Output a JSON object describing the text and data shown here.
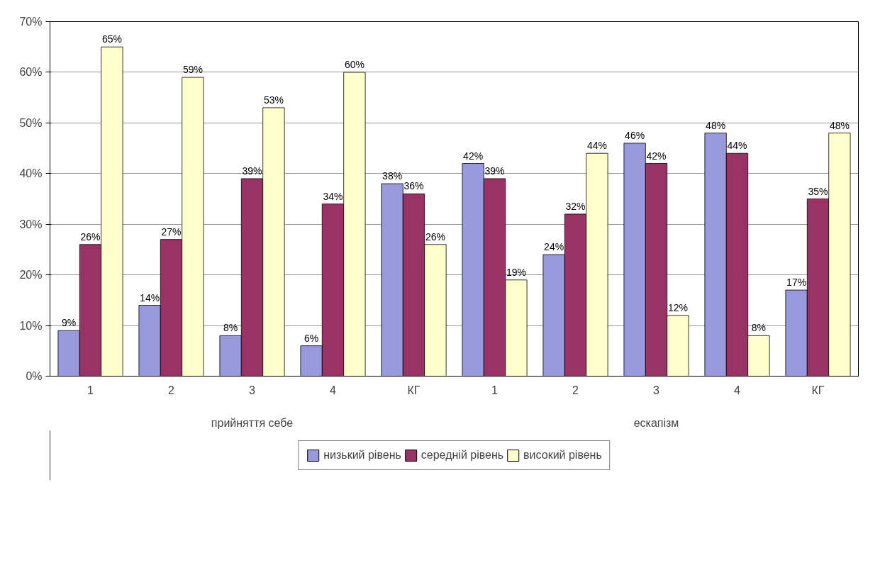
{
  "chart_data": {
    "type": "bar",
    "categories": [
      "1",
      "2",
      "3",
      "4",
      "КГ",
      "1",
      "2",
      "3",
      "4",
      "КГ"
    ],
    "annotations": [
      "прийняття себе",
      "ескапізм"
    ],
    "series": [
      {
        "name": "низький рівень",
        "color": "#9999dd",
        "values": [
          9,
          14,
          8,
          6,
          38,
          42,
          24,
          46,
          48,
          17
        ],
        "value_labels": [
          "9%",
          "14%",
          "8%",
          "6%",
          "38%",
          "42%",
          "24%",
          "46%",
          "48%",
          "17%"
        ]
      },
      {
        "name": "середній рівень",
        "color": "#993366",
        "values": [
          26,
          27,
          39,
          34,
          36,
          39,
          32,
          42,
          44,
          35
        ],
        "value_labels": [
          "26%",
          "27%",
          "39%",
          "34%",
          "36%",
          "39%",
          "32%",
          "42%",
          "44%",
          "35%"
        ]
      },
      {
        "name": "високий рівень",
        "color": "#ffffcc",
        "values": [
          65,
          59,
          53,
          60,
          26,
          19,
          44,
          12,
          8,
          48
        ],
        "value_labels": [
          "65%",
          "59%",
          "53%",
          "60%",
          "26%",
          "19%",
          "44%",
          "12%",
          "8%",
          "48%"
        ]
      }
    ],
    "ylim": [
      0,
      70
    ],
    "yticks": [
      {
        "value": 0,
        "label": "0%"
      },
      {
        "value": 10,
        "label": "10%"
      },
      {
        "value": 20,
        "label": "20%"
      },
      {
        "value": 30,
        "label": "30%"
      },
      {
        "value": 40,
        "label": "40%"
      },
      {
        "value": 50,
        "label": "50%"
      },
      {
        "value": 60,
        "label": "60%"
      },
      {
        "value": 70,
        "label": "70%"
      }
    ],
    "grid": "y",
    "legend": "bottom"
  }
}
